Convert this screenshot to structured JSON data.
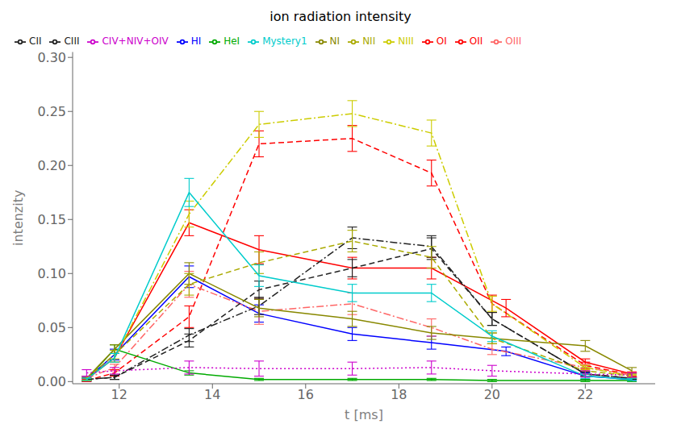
{
  "chart_data": {
    "type": "line",
    "title": "ion radiation intensity",
    "x_label": "t [ms]",
    "y_label": "intenzity",
    "xlim": [
      11.0,
      23.5
    ],
    "ylim": [
      -0.002,
      0.305
    ],
    "xticks": [
      12,
      14,
      16,
      18,
      20,
      22
    ],
    "yticks": [
      {
        "value": 0.0,
        "label": "0.00"
      },
      {
        "value": 0.05,
        "label": "0.05"
      },
      {
        "value": 0.1,
        "label": "0.10"
      },
      {
        "value": 0.15,
        "label": "0.15"
      },
      {
        "value": 0.2,
        "label": "0.20"
      },
      {
        "value": 0.25,
        "label": "0.25"
      },
      {
        "value": 0.3,
        "label": "0.30"
      }
    ],
    "grid": false,
    "legend": "upper left",
    "series": [
      {
        "name": "HI",
        "color": "#0000ff",
        "line_style": "solid",
        "x": [
          11.3,
          11.9,
          13.5,
          15.0,
          17.0,
          18.7,
          20.3,
          22.0,
          23.0
        ],
        "values": [
          0.002,
          0.025,
          0.097,
          0.063,
          0.044,
          0.036,
          0.028,
          0.005,
          0.002
        ],
        "yerr": [
          0.002,
          0.005,
          0.01,
          0.008,
          0.006,
          0.006,
          0.004,
          0.003,
          0.001
        ]
      },
      {
        "name": "OI",
        "color": "#ff0000",
        "line_style": "solid",
        "x": [
          11.3,
          11.9,
          13.5,
          15.0,
          17.0,
          18.7,
          20.3,
          22.0,
          23.0
        ],
        "values": [
          0.002,
          0.022,
          0.147,
          0.122,
          0.105,
          0.105,
          0.068,
          0.018,
          0.007
        ],
        "yerr": [
          0.001,
          0.004,
          0.012,
          0.013,
          0.01,
          0.01,
          0.008,
          0.003,
          0.002
        ]
      },
      {
        "name": "OII",
        "color": "#ff0000",
        "line_style": "dashed",
        "x": [
          11.3,
          11.9,
          13.5,
          15.0,
          17.0,
          18.7,
          20.0,
          22.0,
          23.0
        ],
        "values": [
          0.001,
          0.008,
          0.06,
          0.22,
          0.225,
          0.193,
          0.072,
          0.015,
          0.006
        ],
        "yerr": [
          0.001,
          0.003,
          0.01,
          0.012,
          0.012,
          0.012,
          0.008,
          0.003,
          0.002
        ]
      },
      {
        "name": "OIII",
        "color": "#ff6666",
        "line_style": "dashdot",
        "x": [
          11.3,
          11.9,
          13.5,
          15.0,
          17.0,
          18.7,
          20.0,
          22.0,
          23.0
        ],
        "values": [
          0.003,
          0.013,
          0.09,
          0.065,
          0.072,
          0.05,
          0.03,
          0.013,
          0.006
        ],
        "yerr": [
          0.002,
          0.003,
          0.012,
          0.012,
          0.01,
          0.008,
          0.005,
          0.003,
          0.002
        ]
      },
      {
        "name": "HeI",
        "color": "#00aa00",
        "line_style": "solid",
        "x": [
          11.3,
          11.9,
          13.5,
          15.0,
          17.0,
          18.7,
          20.0,
          22.0,
          23.0
        ],
        "values": [
          0.002,
          0.03,
          0.008,
          0.002,
          0.002,
          0.002,
          0.001,
          0.001,
          0.001
        ],
        "yerr": [
          0.001,
          0.004,
          0.002,
          0.001,
          0.001,
          0.001,
          0.001,
          0.001,
          0.001
        ]
      },
      {
        "name": "CII",
        "color": "#222222",
        "line_style": "dashed",
        "x": [
          11.3,
          11.9,
          13.5,
          15.0,
          17.0,
          18.7,
          20.0,
          22.0,
          23.0
        ],
        "values": [
          0.002,
          0.004,
          0.038,
          0.085,
          0.105,
          0.123,
          0.058,
          0.007,
          0.003
        ],
        "yerr": [
          0.001,
          0.002,
          0.006,
          0.008,
          0.008,
          0.01,
          0.006,
          0.002,
          0.001
        ]
      },
      {
        "name": "CIII",
        "color": "#222222",
        "line_style": "dashdot",
        "x": [
          11.3,
          11.9,
          13.5,
          15.0,
          17.0,
          18.7,
          20.0,
          22.0,
          23.0
        ],
        "values": [
          0.002,
          0.004,
          0.043,
          0.07,
          0.133,
          0.125,
          0.058,
          0.007,
          0.003
        ],
        "yerr": [
          0.001,
          0.002,
          0.006,
          0.008,
          0.01,
          0.01,
          0.006,
          0.002,
          0.001
        ]
      },
      {
        "name": "NI",
        "color": "#888800",
        "line_style": "solid",
        "x": [
          11.3,
          11.9,
          13.5,
          15.0,
          17.0,
          18.7,
          20.0,
          22.0,
          23.0
        ],
        "values": [
          0.003,
          0.03,
          0.1,
          0.068,
          0.058,
          0.045,
          0.04,
          0.033,
          0.01
        ],
        "yerr": [
          0.002,
          0.004,
          0.01,
          0.008,
          0.007,
          0.006,
          0.005,
          0.005,
          0.003
        ]
      },
      {
        "name": "NII",
        "color": "#aaaa00",
        "line_style": "dashed",
        "x": [
          11.3,
          11.9,
          13.5,
          15.0,
          17.0,
          18.7,
          20.0,
          22.0,
          23.0
        ],
        "values": [
          0.003,
          0.025,
          0.09,
          0.11,
          0.13,
          0.115,
          0.04,
          0.01,
          0.005
        ],
        "yerr": [
          0.002,
          0.004,
          0.01,
          0.01,
          0.01,
          0.01,
          0.005,
          0.003,
          0.002
        ]
      },
      {
        "name": "NIII",
        "color": "#cccc00",
        "line_style": "dashdot",
        "x": [
          11.3,
          11.9,
          13.5,
          15.0,
          17.0,
          18.7,
          20.0,
          22.0,
          23.0
        ],
        "values": [
          0.002,
          0.022,
          0.155,
          0.238,
          0.248,
          0.23,
          0.072,
          0.013,
          0.005
        ],
        "yerr": [
          0.001,
          0.004,
          0.012,
          0.012,
          0.012,
          0.012,
          0.007,
          0.002,
          0.001
        ]
      },
      {
        "name": "Mystery1",
        "color": "#00cccc",
        "line_style": "solid",
        "x": [
          11.3,
          11.9,
          13.5,
          15.0,
          17.0,
          18.7,
          20.0,
          22.0,
          23.0
        ],
        "values": [
          0.002,
          0.022,
          0.175,
          0.098,
          0.082,
          0.082,
          0.042,
          0.005,
          0.002
        ],
        "yerr": [
          0.001,
          0.004,
          0.013,
          0.01,
          0.008,
          0.008,
          0.005,
          0.002,
          0.001
        ]
      },
      {
        "name": "CIV+NIV+OIV",
        "color": "#cc00cc",
        "line_style": "dotted",
        "x": [
          11.3,
          11.9,
          13.5,
          15.0,
          17.0,
          18.7,
          20.0,
          22.0,
          23.0
        ],
        "values": [
          0.008,
          0.01,
          0.013,
          0.012,
          0.012,
          0.013,
          0.01,
          0.007,
          0.006
        ],
        "yerr": [
          0.003,
          0.003,
          0.006,
          0.007,
          0.006,
          0.006,
          0.005,
          0.003,
          0.002
        ]
      }
    ]
  }
}
